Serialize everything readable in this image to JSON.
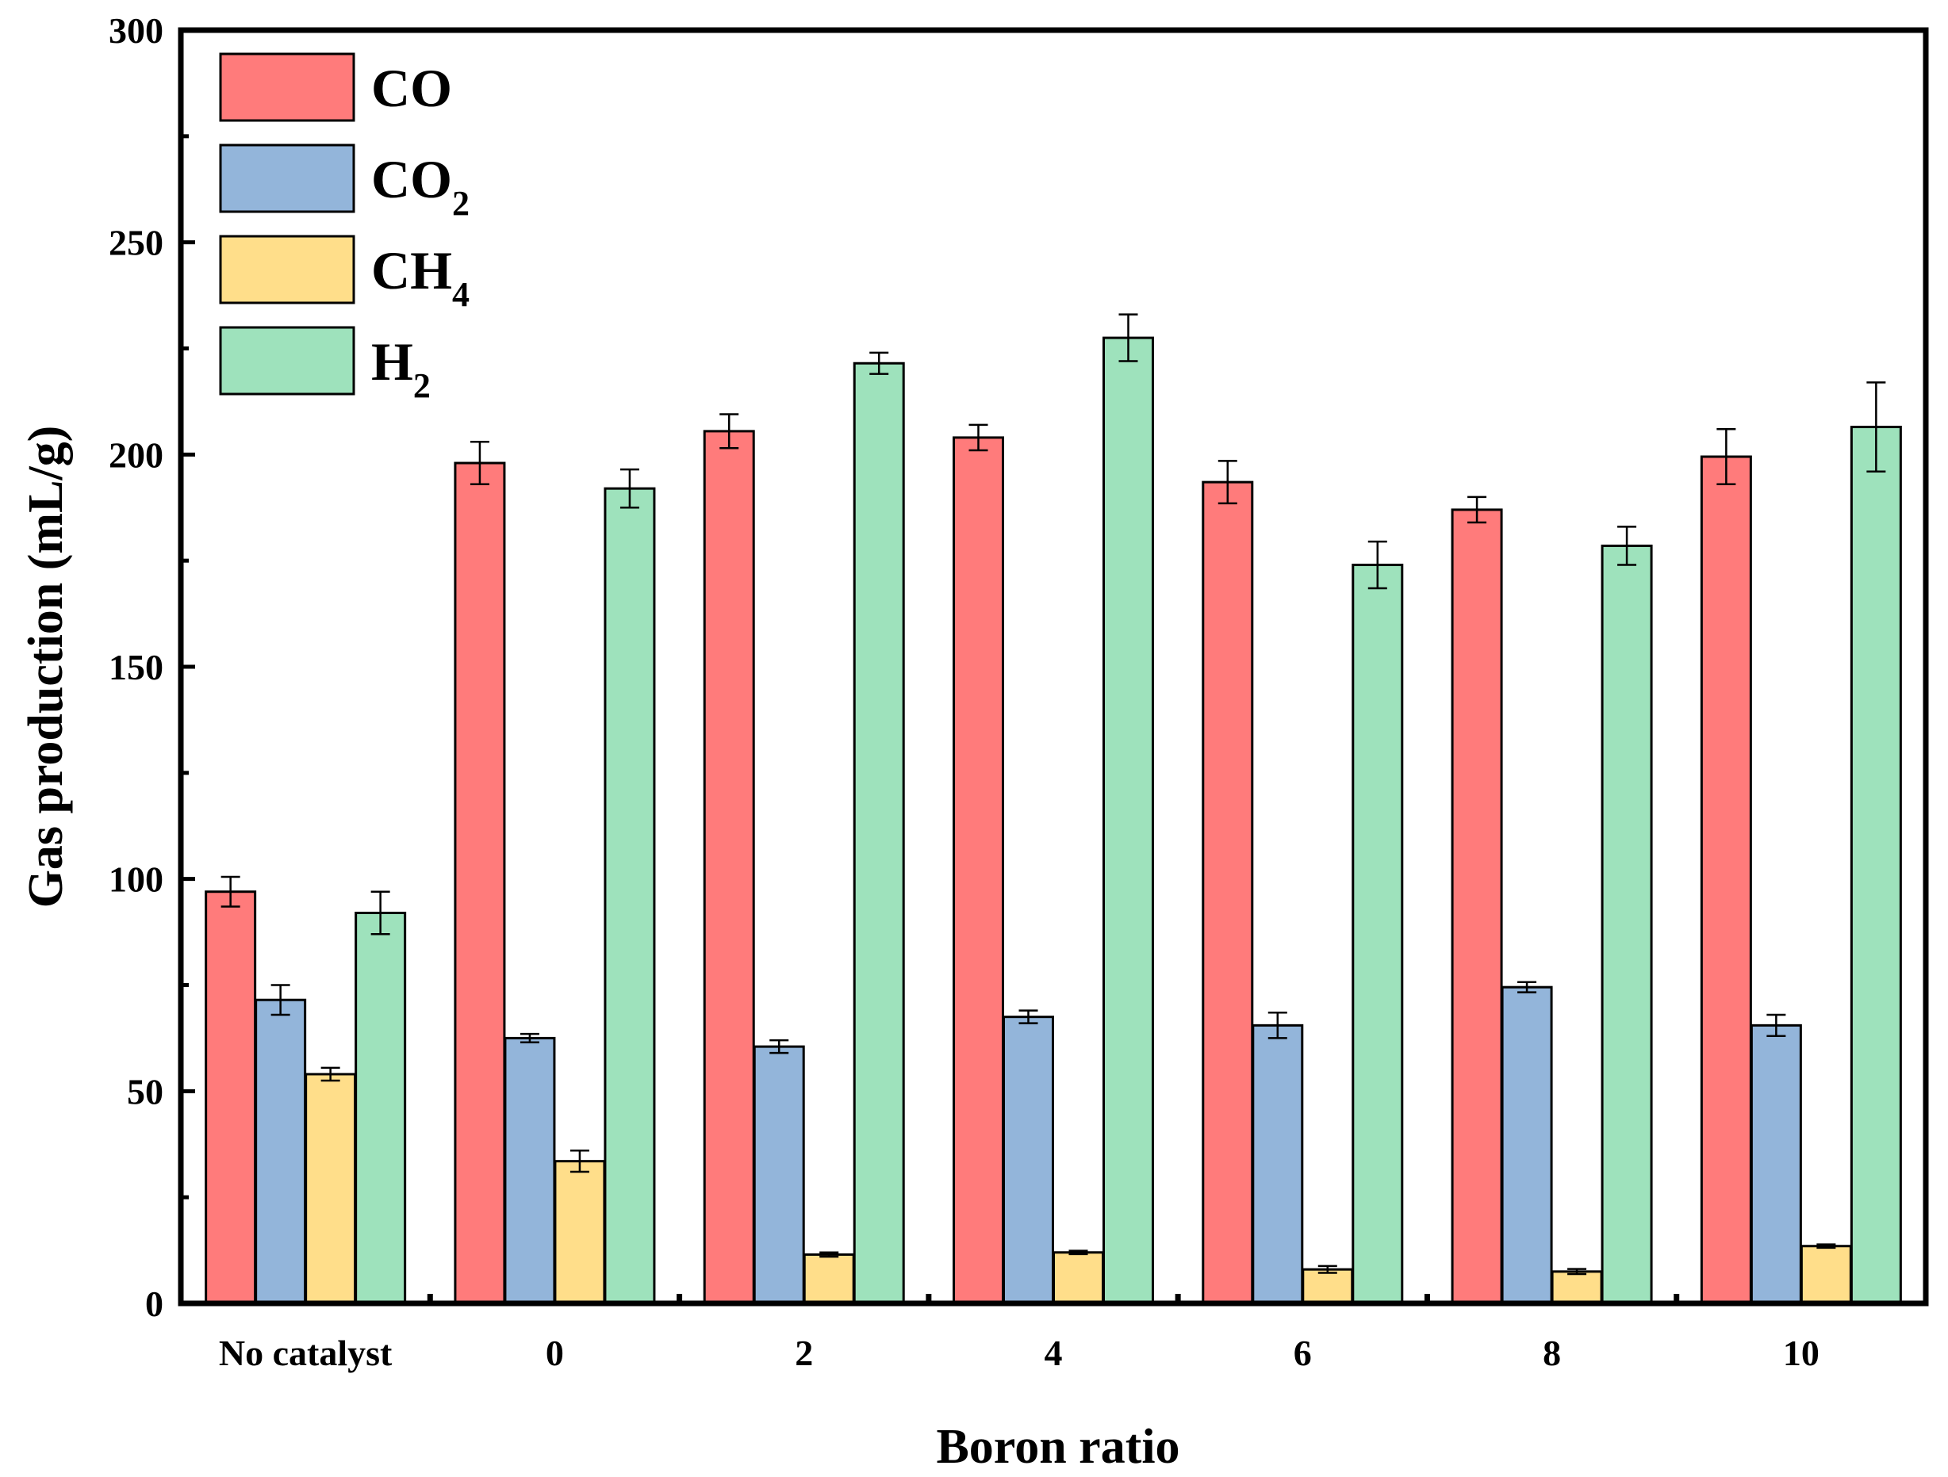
{
  "chart_data": {
    "type": "bar",
    "title": "",
    "xlabel": "Boron ratio",
    "ylabel": "Gas production (mL/g)",
    "ylim": [
      0,
      300
    ],
    "yticks": [
      0,
      50,
      100,
      150,
      200,
      250,
      300
    ],
    "categories": [
      "No catalyst",
      "0",
      "2",
      "4",
      "6",
      "8",
      "10"
    ],
    "legend_position": "top-left",
    "series": [
      {
        "name": "CO",
        "label_main": "CO",
        "label_sub": "",
        "color": "#FF7B7B",
        "values": [
          97,
          198,
          205.5,
          204,
          193.5,
          187,
          199.5
        ],
        "errors": [
          3.5,
          5,
          4,
          3,
          5,
          3,
          6.5
        ]
      },
      {
        "name": "CO2",
        "label_main": "CO",
        "label_sub": "2",
        "color": "#93B5DA",
        "values": [
          71.5,
          62.5,
          60.5,
          67.5,
          65.5,
          74.5,
          65.5
        ],
        "errors": [
          3.5,
          1,
          1.5,
          1.5,
          3,
          1.2,
          2.5
        ]
      },
      {
        "name": "CH4",
        "label_main": "CH",
        "label_sub": "4",
        "color": "#FFDE8A",
        "values": [
          54,
          33.5,
          11.5,
          12,
          8,
          7.5,
          13.5
        ],
        "errors": [
          1.5,
          2.5,
          0.5,
          0.4,
          0.8,
          0.6,
          0.4
        ]
      },
      {
        "name": "H2",
        "label_main": "H",
        "label_sub": "2",
        "color": "#9EE2BC",
        "values": [
          92,
          192,
          221.5,
          227.5,
          174,
          178.5,
          206.5
        ],
        "errors": [
          5,
          4.5,
          2.5,
          5.5,
          5.5,
          4.5,
          10.5
        ]
      }
    ]
  }
}
